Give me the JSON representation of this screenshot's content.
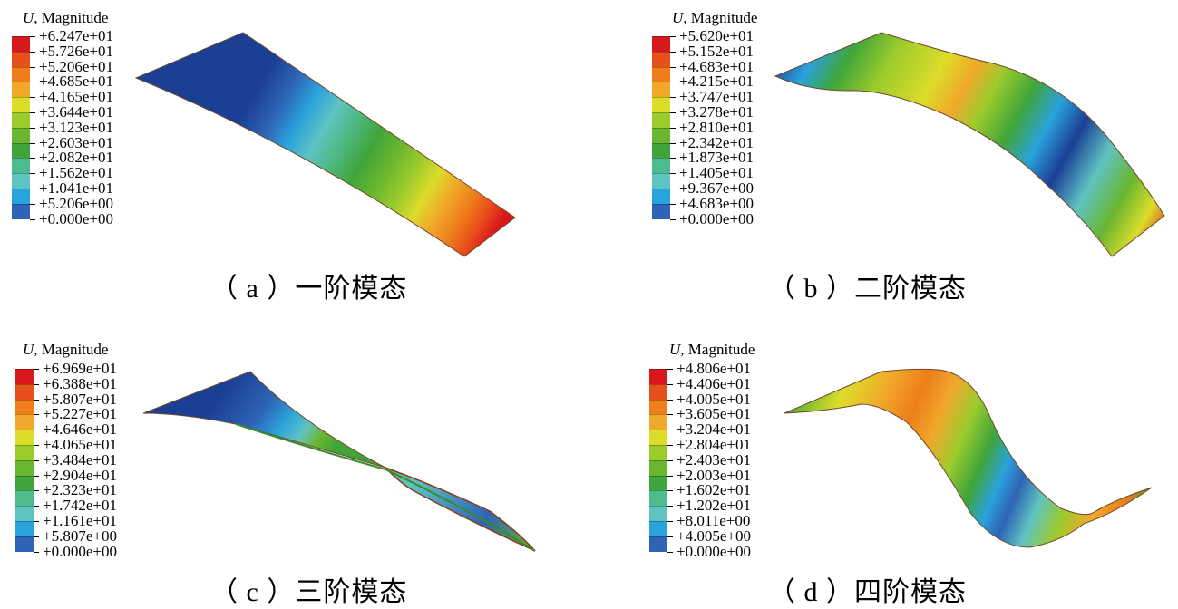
{
  "legend_title_symbol": "U",
  "legend_title_rest": ", Magnitude",
  "palette": [
    "#d7191c",
    "#e8501b",
    "#ee7d1a",
    "#f0a82a",
    "#dcdc2a",
    "#9ccb2c",
    "#6ab62f",
    "#3fa53a",
    "#4fba8a",
    "#5fc3c2",
    "#2aa2dc",
    "#2e63b5",
    "#1b3f95"
  ],
  "panels": [
    {
      "caption": "（ a ）一阶模态",
      "values": [
        "+6.247e+01",
        "+5.726e+01",
        "+5.206e+01",
        "+4.685e+01",
        "+4.165e+01",
        "+3.644e+01",
        "+3.123e+01",
        "+2.603e+01",
        "+2.082e+01",
        "+1.562e+01",
        "+1.041e+01",
        "+5.206e+00",
        "+0.000e+00"
      ]
    },
    {
      "caption": "（ b ）二阶模态",
      "values": [
        "+5.620e+01",
        "+5.152e+01",
        "+4.683e+01",
        "+4.215e+01",
        "+3.747e+01",
        "+3.278e+01",
        "+2.810e+01",
        "+2.342e+01",
        "+1.873e+01",
        "+1.405e+01",
        "+9.367e+00",
        "+4.683e+00",
        "+0.000e+00"
      ]
    },
    {
      "caption": "（ c ）三阶模态",
      "values": [
        "+6.969e+01",
        "+6.388e+01",
        "+5.807e+01",
        "+5.227e+01",
        "+4.646e+01",
        "+4.065e+01",
        "+3.484e+01",
        "+2.904e+01",
        "+2.323e+01",
        "+1.742e+01",
        "+1.161e+01",
        "+5.807e+00",
        "+0.000e+00"
      ]
    },
    {
      "caption": "（ d ）四阶模态",
      "values": [
        "+4.806e+01",
        "+4.406e+01",
        "+4.005e+01",
        "+3.605e+01",
        "+3.204e+01",
        "+2.804e+01",
        "+2.403e+01",
        "+2.003e+01",
        "+1.602e+01",
        "+1.202e+01",
        "+8.011e+00",
        "+4.005e+00",
        "+0.000e+00"
      ]
    }
  ]
}
